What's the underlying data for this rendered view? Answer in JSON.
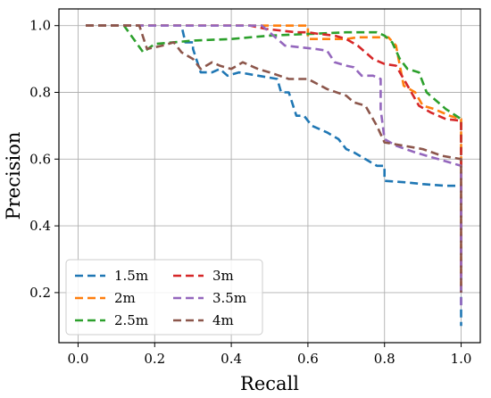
{
  "chart_data": {
    "type": "line",
    "title": "",
    "xlabel": "Recall",
    "ylabel": "Precision",
    "xlim": [
      -0.05,
      1.05
    ],
    "ylim": [
      0.05,
      1.05
    ],
    "xticks": [
      0.0,
      0.2,
      0.4,
      0.6,
      0.8,
      1.0
    ],
    "yticks": [
      0.2,
      0.4,
      0.6,
      0.8,
      1.0
    ],
    "xtick_labels": [
      "0.0",
      "0.2",
      "0.4",
      "0.6",
      "0.8",
      "1.0"
    ],
    "ytick_labels": [
      "0.2",
      "0.4",
      "0.6",
      "0.8",
      "1.0"
    ],
    "grid": true,
    "legend": {
      "position": "lower-left",
      "columns": 2
    },
    "series": [
      {
        "name": "1.5m",
        "color": "#1f77b4",
        "points": [
          [
            0.02,
            1.0
          ],
          [
            0.27,
            1.0
          ],
          [
            0.28,
            0.95
          ],
          [
            0.3,
            0.95
          ],
          [
            0.3,
            0.93
          ],
          [
            0.32,
            0.86
          ],
          [
            0.35,
            0.86
          ],
          [
            0.37,
            0.87
          ],
          [
            0.39,
            0.85
          ],
          [
            0.42,
            0.86
          ],
          [
            0.47,
            0.85
          ],
          [
            0.52,
            0.84
          ],
          [
            0.53,
            0.8
          ],
          [
            0.55,
            0.8
          ],
          [
            0.57,
            0.73
          ],
          [
            0.59,
            0.73
          ],
          [
            0.61,
            0.7
          ],
          [
            0.65,
            0.68
          ],
          [
            0.68,
            0.66
          ],
          [
            0.7,
            0.63
          ],
          [
            0.72,
            0.62
          ],
          [
            0.75,
            0.6
          ],
          [
            0.78,
            0.58
          ],
          [
            0.8,
            0.58
          ],
          [
            0.8,
            0.535
          ],
          [
            0.86,
            0.53
          ],
          [
            0.9,
            0.525
          ],
          [
            0.96,
            0.52
          ],
          [
            1.0,
            0.52
          ],
          [
            1.0,
            0.1
          ]
        ]
      },
      {
        "name": "2m",
        "color": "#ff7f0e",
        "points": [
          [
            0.02,
            1.0
          ],
          [
            0.6,
            1.0
          ],
          [
            0.6,
            0.96
          ],
          [
            0.7,
            0.96
          ],
          [
            0.73,
            0.965
          ],
          [
            0.81,
            0.965
          ],
          [
            0.83,
            0.94
          ],
          [
            0.85,
            0.82
          ],
          [
            0.88,
            0.8
          ],
          [
            0.9,
            0.76
          ],
          [
            0.93,
            0.75
          ],
          [
            0.97,
            0.73
          ],
          [
            1.0,
            0.72
          ],
          [
            1.0,
            0.2
          ]
        ]
      },
      {
        "name": "2.5m",
        "color": "#2ca02c",
        "points": [
          [
            0.02,
            1.0
          ],
          [
            0.12,
            1.0
          ],
          [
            0.17,
            0.92
          ],
          [
            0.2,
            0.945
          ],
          [
            0.3,
            0.955
          ],
          [
            0.4,
            0.96
          ],
          [
            0.5,
            0.97
          ],
          [
            0.6,
            0.975
          ],
          [
            0.7,
            0.98
          ],
          [
            0.78,
            0.98
          ],
          [
            0.8,
            0.97
          ],
          [
            0.82,
            0.95
          ],
          [
            0.84,
            0.9
          ],
          [
            0.86,
            0.87
          ],
          [
            0.89,
            0.86
          ],
          [
            0.91,
            0.8
          ],
          [
            0.93,
            0.78
          ],
          [
            0.96,
            0.75
          ],
          [
            1.0,
            0.72
          ],
          [
            1.0,
            0.3
          ]
        ]
      },
      {
        "name": "3m",
        "color": "#d62728",
        "points": [
          [
            0.02,
            1.0
          ],
          [
            0.45,
            1.0
          ],
          [
            0.49,
            0.99
          ],
          [
            0.53,
            0.985
          ],
          [
            0.57,
            0.98
          ],
          [
            0.6,
            0.98
          ],
          [
            0.63,
            0.975
          ],
          [
            0.67,
            0.97
          ],
          [
            0.7,
            0.96
          ],
          [
            0.73,
            0.94
          ],
          [
            0.77,
            0.9
          ],
          [
            0.8,
            0.885
          ],
          [
            0.83,
            0.88
          ],
          [
            0.85,
            0.84
          ],
          [
            0.87,
            0.8
          ],
          [
            0.89,
            0.76
          ],
          [
            0.92,
            0.74
          ],
          [
            0.96,
            0.72
          ],
          [
            1.0,
            0.715
          ],
          [
            1.0,
            0.25
          ]
        ]
      },
      {
        "name": "3.5m",
        "color": "#9467bd",
        "points": [
          [
            0.02,
            1.0
          ],
          [
            0.48,
            1.0
          ],
          [
            0.5,
            0.98
          ],
          [
            0.52,
            0.96
          ],
          [
            0.54,
            0.94
          ],
          [
            0.58,
            0.935
          ],
          [
            0.62,
            0.93
          ],
          [
            0.65,
            0.925
          ],
          [
            0.67,
            0.89
          ],
          [
            0.7,
            0.88
          ],
          [
            0.72,
            0.875
          ],
          [
            0.74,
            0.85
          ],
          [
            0.77,
            0.85
          ],
          [
            0.79,
            0.84
          ],
          [
            0.79,
            0.75
          ],
          [
            0.8,
            0.66
          ],
          [
            0.83,
            0.64
          ],
          [
            0.88,
            0.62
          ],
          [
            0.94,
            0.6
          ],
          [
            1.0,
            0.58
          ],
          [
            1.0,
            0.15
          ]
        ]
      },
      {
        "name": "4m",
        "color": "#8c564b",
        "points": [
          [
            0.02,
            1.0
          ],
          [
            0.16,
            1.0
          ],
          [
            0.18,
            0.93
          ],
          [
            0.22,
            0.94
          ],
          [
            0.25,
            0.95
          ],
          [
            0.27,
            0.92
          ],
          [
            0.3,
            0.9
          ],
          [
            0.32,
            0.87
          ],
          [
            0.35,
            0.89
          ],
          [
            0.37,
            0.88
          ],
          [
            0.4,
            0.87
          ],
          [
            0.43,
            0.89
          ],
          [
            0.47,
            0.87
          ],
          [
            0.5,
            0.86
          ],
          [
            0.55,
            0.84
          ],
          [
            0.6,
            0.84
          ],
          [
            0.65,
            0.81
          ],
          [
            0.7,
            0.79
          ],
          [
            0.72,
            0.77
          ],
          [
            0.75,
            0.76
          ],
          [
            0.78,
            0.7
          ],
          [
            0.8,
            0.65
          ],
          [
            0.85,
            0.64
          ],
          [
            0.9,
            0.63
          ],
          [
            0.95,
            0.61
          ],
          [
            1.0,
            0.6
          ],
          [
            1.0,
            0.2
          ]
        ]
      }
    ]
  }
}
